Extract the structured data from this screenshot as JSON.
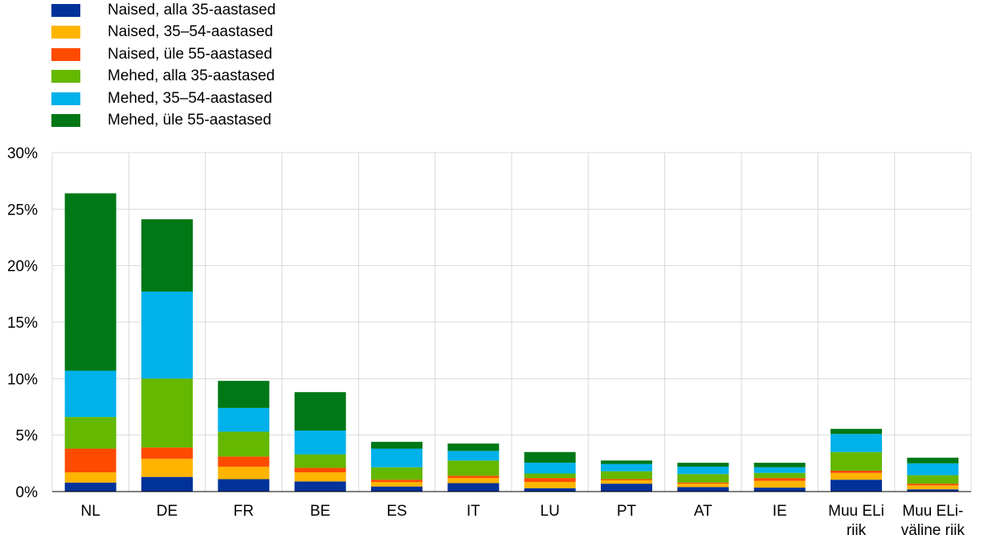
{
  "chart_data": {
    "type": "bar",
    "stacked": true,
    "categories": [
      [
        "NL"
      ],
      [
        "DE"
      ],
      [
        "FR"
      ],
      [
        "BE"
      ],
      [
        "ES"
      ],
      [
        "IT"
      ],
      [
        "LU"
      ],
      [
        "PT"
      ],
      [
        "AT"
      ],
      [
        "IE"
      ],
      [
        "Muu ELi",
        "riik"
      ],
      [
        "Muu ELi-",
        "väline riik"
      ]
    ],
    "series": [
      {
        "name": "Naised, alla 35-aastased",
        "color": "#003299",
        "values": [
          0.8,
          1.3,
          1.1,
          0.9,
          0.45,
          0.75,
          0.3,
          0.7,
          0.4,
          0.35,
          1.05,
          0.2
        ]
      },
      {
        "name": "Naised, 35–54-aastased",
        "color": "#FFB400",
        "values": [
          0.9,
          1.6,
          1.1,
          0.8,
          0.4,
          0.45,
          0.55,
          0.3,
          0.3,
          0.6,
          0.6,
          0.35
        ]
      },
      {
        "name": "Naised, üle 55-aastased",
        "color": "#FF4B00",
        "values": [
          2.1,
          1.0,
          0.9,
          0.4,
          0.2,
          0.2,
          0.35,
          0.1,
          0.1,
          0.25,
          0.2,
          0.15
        ]
      },
      {
        "name": "Mehed, alla 35-aastased",
        "color": "#65B800",
        "values": [
          2.8,
          6.1,
          2.2,
          1.2,
          1.1,
          1.35,
          0.4,
          0.7,
          0.75,
          0.45,
          1.65,
          0.75
        ]
      },
      {
        "name": "Mehed, 35–54-aastased",
        "color": "#00B1EA",
        "values": [
          4.1,
          7.7,
          2.1,
          2.1,
          1.65,
          0.85,
          0.95,
          0.65,
          0.65,
          0.5,
          1.6,
          1.05
        ]
      },
      {
        "name": "Mehed, üle 55-aastased",
        "color": "#007816",
        "values": [
          15.7,
          6.4,
          2.4,
          3.4,
          0.6,
          0.65,
          0.95,
          0.3,
          0.35,
          0.4,
          0.45,
          0.5
        ]
      }
    ],
    "yticks": [
      "0%",
      "5%",
      "10%",
      "15%",
      "20%",
      "25%",
      "30%"
    ],
    "ylim": [
      0,
      30
    ],
    "grid": true,
    "legend_position": "top-left"
  }
}
